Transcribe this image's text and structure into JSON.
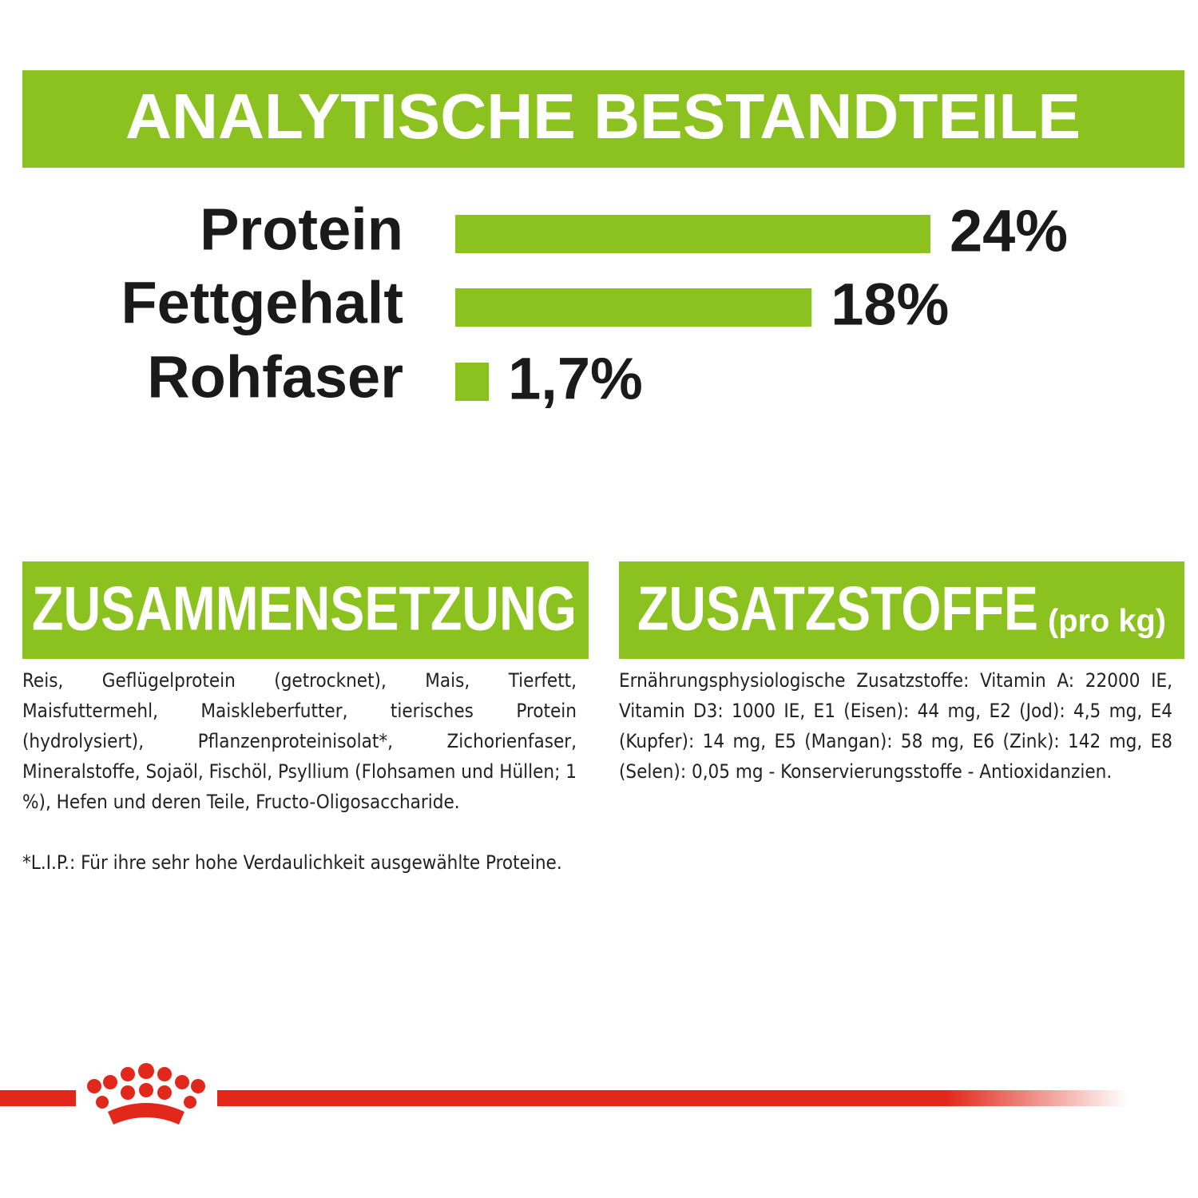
{
  "chart_data": {
    "type": "bar",
    "orientation": "horizontal",
    "title": "ANALYTISCHE BESTANDTEILE",
    "categories": [
      "Protein",
      "Fettgehalt",
      "Rohfaser"
    ],
    "values": [
      24,
      18,
      1.7
    ],
    "value_labels": [
      "24%",
      "18%",
      "1,7%"
    ],
    "color": "#8cc21f"
  },
  "composition": {
    "title": "ZUSAMMENSETZUNG",
    "text": "Reis, Geflügelprotein (getrocknet), Mais, Tierfett, Maisfuttermehl, Maiskleberfutter, tierisches Protein (hydrolysiert), Pflanzenproteinisolat*, Zichorienfaser, Mineralstoffe, Sojaöl, Fischöl, Psyllium (Flohsamen und Hüllen; 1 %), Hefen und deren Teile, Fructo-Oligosaccharide.",
    "note": "*L.I.P.: Für ihre sehr hohe Verdaulichkeit ausgewählte Proteine."
  },
  "additives": {
    "title": "ZUSATZSTOFFE",
    "unit": "(pro kg)",
    "text": "Ernährungsphysiologische Zusatzstoffe: Vitamin A: 22000 IE, Vitamin D3: 1000 IE, E1 (Eisen): 44 mg, E2 (Jod): 4,5 mg, E4 (Kupfer): 14 mg, E5 (Mangan): 58 mg, E6 (Zink): 142 mg, E8 (Selen): 0,05 mg - Konservierungsstoffe - Antioxidanzien."
  }
}
